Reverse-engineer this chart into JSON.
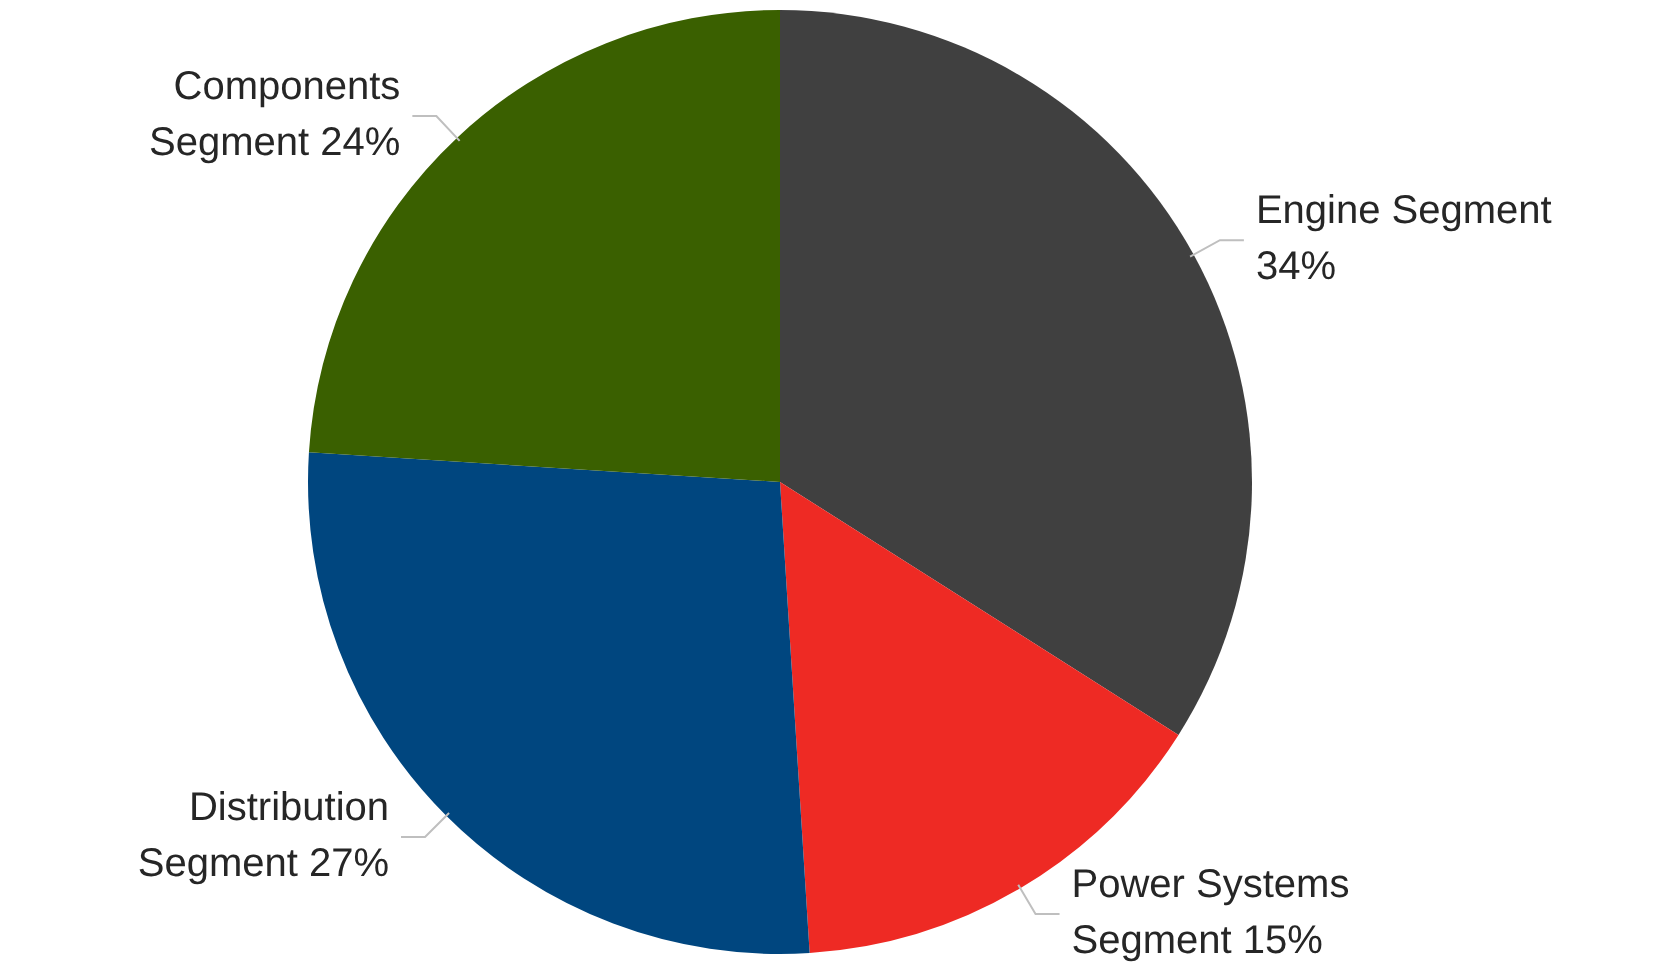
{
  "chart_data": {
    "type": "pie",
    "categories": [
      "Engine Segment",
      "Power Systems Segment",
      "Distribution Segment",
      "Components Segment"
    ],
    "values": [
      34,
      15,
      27,
      24
    ],
    "value_labels": [
      "34%",
      "15%",
      "27%",
      "24%"
    ],
    "colors": [
      "#404040",
      "#ee2a24",
      "#00467f",
      "#3a6000"
    ],
    "legend": false
  }
}
